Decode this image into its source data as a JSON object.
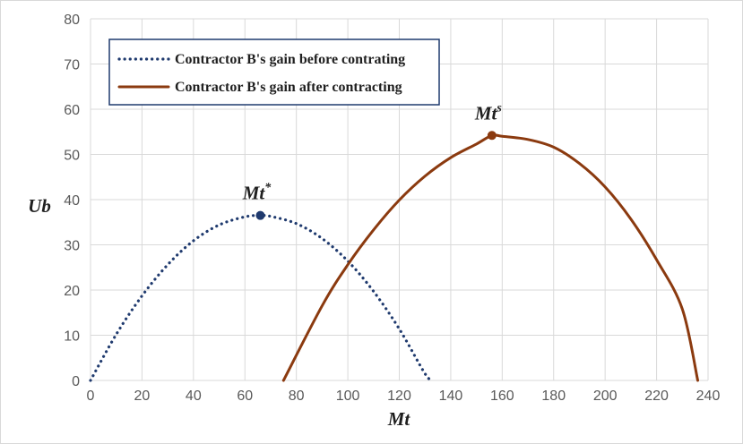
{
  "chart_data": {
    "type": "line",
    "xlabel": "Mt",
    "ylabel": "Ub",
    "xlim": [
      0,
      240
    ],
    "ylim": [
      0,
      80
    ],
    "x_ticks": [
      "0",
      "20",
      "40",
      "60",
      "80",
      "100",
      "120",
      "140",
      "160",
      "180",
      "200",
      "220",
      "240"
    ],
    "y_ticks": [
      "0",
      "10",
      "20",
      "30",
      "40",
      "50",
      "60",
      "70",
      "80"
    ],
    "grid": true,
    "legend_position": "top-left",
    "series": [
      {
        "name": "Contractor B's gain before contrating",
        "style": "dotted",
        "color": "#1f3a6e",
        "x": [
          0,
          10,
          20,
          30,
          40,
          50,
          60,
          66,
          70,
          80,
          90,
          100,
          110,
          120,
          130,
          133
        ],
        "y": [
          0,
          10.2,
          18.7,
          25.6,
          30.9,
          34.4,
          36.2,
          36.5,
          36.3,
          34.7,
          31.4,
          26.4,
          19.7,
          11.4,
          1.5,
          0
        ]
      },
      {
        "name": "Contractor B's gain after contracting",
        "style": "solid",
        "color": "#8b3a0f",
        "x": [
          75,
          90,
          100,
          110,
          120,
          130,
          140,
          150,
          156,
          160,
          170,
          180,
          190,
          200,
          210,
          220,
          230,
          236
        ],
        "y": [
          0,
          16.5,
          25.6,
          33.3,
          39.9,
          45.2,
          49.3,
          52.3,
          54.2,
          54.0,
          53.3,
          51.6,
          48.0,
          42.8,
          35.7,
          26.7,
          15.8,
          0
        ]
      }
    ],
    "annotations": [
      {
        "base": "Mt",
        "sup": "*",
        "x": 66,
        "y": 36.5,
        "series": 0
      },
      {
        "base": "Mt",
        "sup": "s",
        "x": 156,
        "y": 54.2,
        "series": 1
      }
    ]
  }
}
